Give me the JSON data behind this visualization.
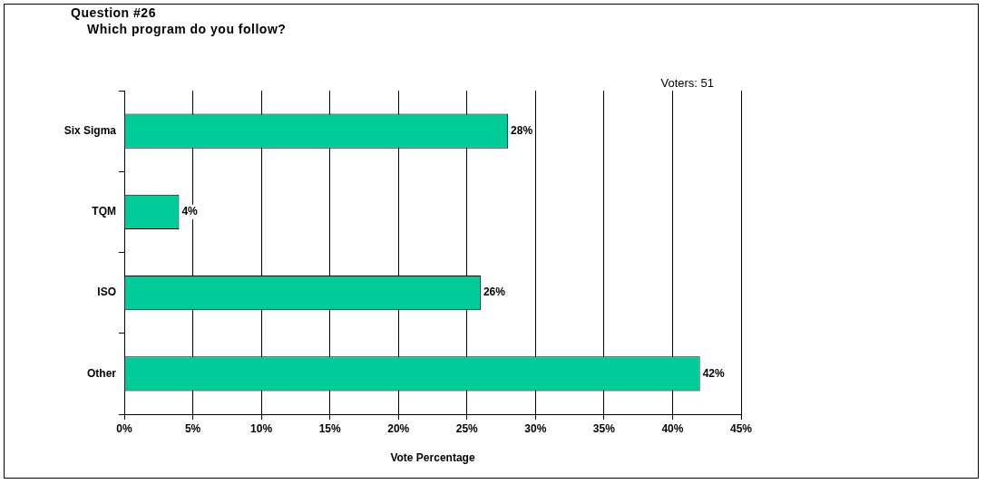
{
  "chart_data": {
    "type": "bar",
    "orientation": "horizontal",
    "title": "Question #26",
    "subtitle": "Which program do you follow?",
    "xlabel": "Vote Percentage",
    "categories": [
      "Six Sigma",
      "TQM",
      "ISO",
      "Other"
    ],
    "values": [
      28,
      4,
      26,
      42
    ],
    "color": "#00cc99",
    "value_labels": [
      "28%",
      "4%",
      "26%",
      "42%"
    ],
    "xlim": [
      0,
      45
    ],
    "xticks": [
      {
        "value": 0,
        "label": "0%"
      },
      {
        "value": 5,
        "label": "5%"
      },
      {
        "value": 10,
        "label": "10%"
      },
      {
        "value": 15,
        "label": "15%"
      },
      {
        "value": 20,
        "label": "20%"
      },
      {
        "value": 25,
        "label": "25%"
      },
      {
        "value": 30,
        "label": "30%"
      },
      {
        "value": 35,
        "label": "35%"
      },
      {
        "value": 40,
        "label": "40%"
      },
      {
        "value": 45,
        "label": "45%"
      }
    ],
    "grid": "x",
    "legend": false,
    "annotations": [
      "Voters: 51"
    ]
  }
}
